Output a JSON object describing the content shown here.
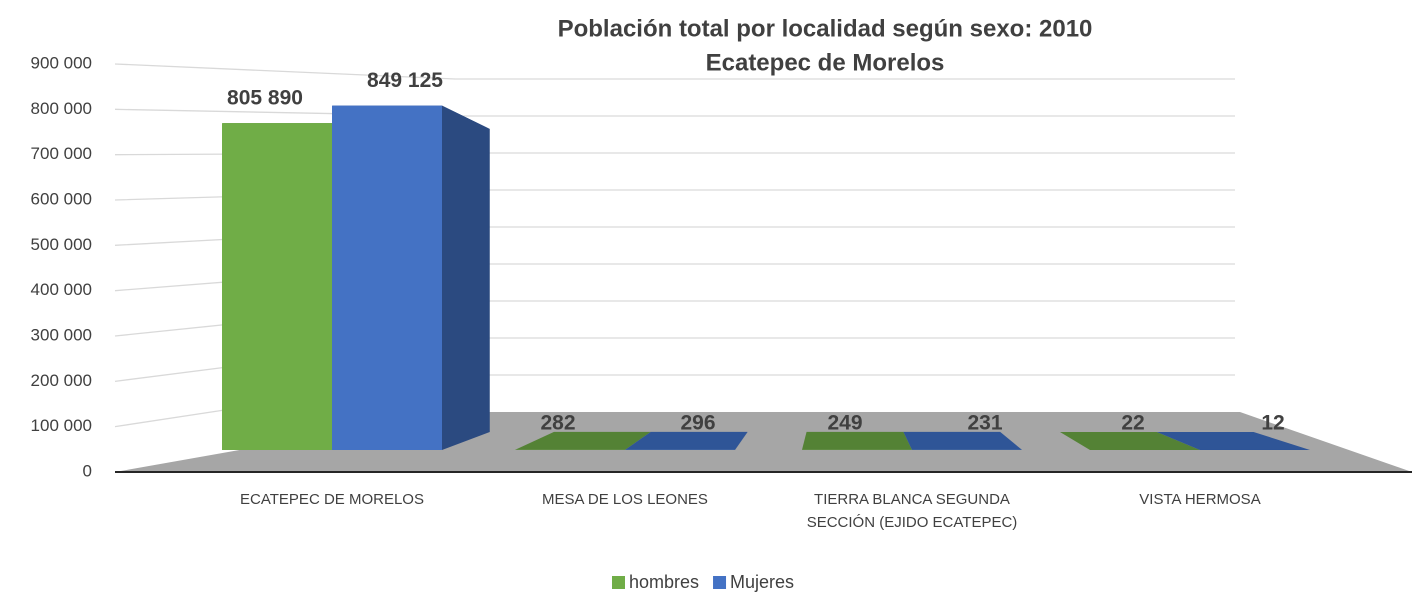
{
  "chart_data": {
    "type": "bar3d",
    "title": "Población total por localidad según sexo: 2010",
    "subtitle": "Ecatepec de Morelos",
    "categories": [
      "ECATEPEC DE MORELOS",
      "MESA DE LOS LEONES",
      "TIERRA BLANCA SEGUNDA SECCIÓN (EJIDO ECATEPEC)",
      "VISTA HERMOSA"
    ],
    "series": [
      {
        "name": "hombres",
        "color": "#70ad47",
        "values": [
          805890,
          282,
          249,
          22
        ],
        "value_labels": [
          "805 890",
          "282",
          "249",
          "22"
        ]
      },
      {
        "name": "Mujeres",
        "color": "#4472c4",
        "values": [
          849125,
          296,
          231,
          12
        ],
        "value_labels": [
          "849 125",
          "296",
          "231",
          "12"
        ]
      }
    ],
    "ylim": [
      0,
      900000
    ],
    "yticks": [
      0,
      {
        "value": 100000,
        "label": "100 000"
      },
      {
        "value": 200000,
        "label": "200 000"
      },
      {
        "value": 300000,
        "label": "300 000"
      },
      {
        "value": 400000,
        "label": "400 000"
      },
      {
        "value": 500000,
        "label": "500 000"
      },
      {
        "value": 600000,
        "label": "600 000"
      },
      {
        "value": 700000,
        "label": "700 000"
      },
      {
        "value": 800000,
        "label": "800 000"
      },
      {
        "value": 900000,
        "label": "900 000"
      }
    ],
    "grid": true,
    "legend": "bottom"
  }
}
